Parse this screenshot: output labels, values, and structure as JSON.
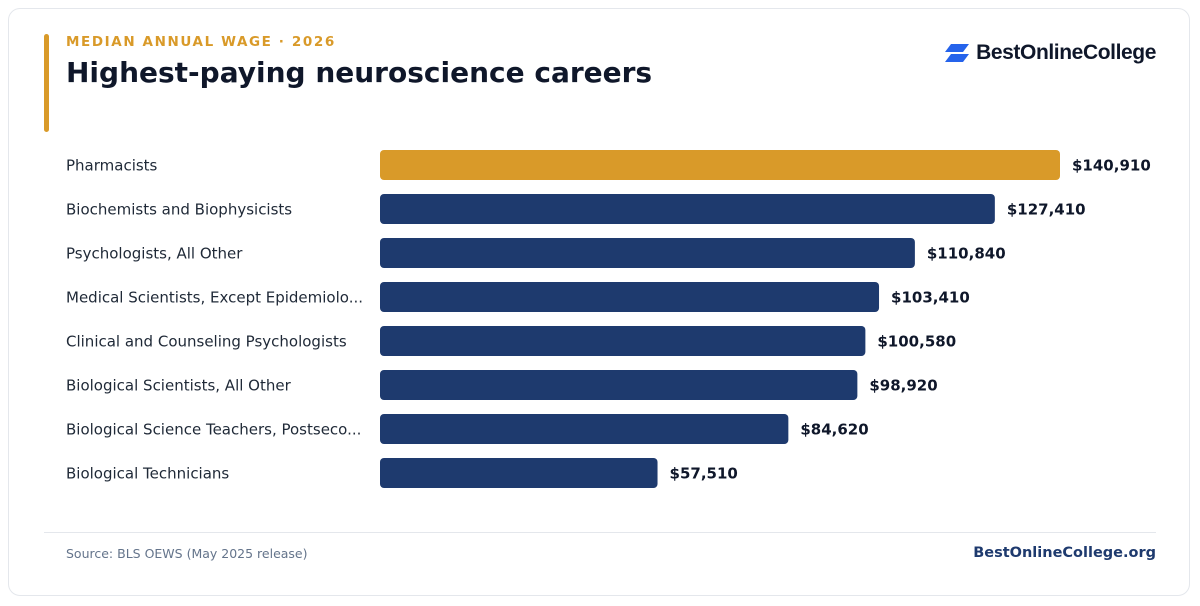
{
  "header": {
    "eyebrow": "MEDIAN ANNUAL WAGE · 2026",
    "title": "Highest-paying neuroscience careers"
  },
  "brand": {
    "name": "BestOnlineCollege",
    "icon": "double-parallelogram-logo-icon"
  },
  "colors": {
    "accent": "#d99a29",
    "bar": "#1e3a6e",
    "highlight": "#d99a29",
    "logo": "#2563eb"
  },
  "chart_data": {
    "type": "bar",
    "orientation": "horizontal",
    "title": "Highest-paying neuroscience careers",
    "xlabel": "",
    "ylabel": "",
    "grid": false,
    "legend": "none",
    "categories": [
      "Pharmacists",
      "Biochemists and Biophysicists",
      "Psychologists, All Other",
      "Medical Scientists, Except Epidemiolo...",
      "Clinical and Counseling Psychologists",
      "Biological Scientists, All Other",
      "Biological Science Teachers, Postseco...",
      "Biological Technicians"
    ],
    "values": [
      140910,
      127410,
      110840,
      103410,
      100580,
      98920,
      84620,
      57510
    ],
    "value_labels": [
      "$140,910",
      "$127,410",
      "$110,840",
      "$103,410",
      "$100,580",
      "$98,920",
      "$84,620",
      "$57,510"
    ],
    "highlight_index": 0,
    "xlim": [
      0,
      140910
    ]
  },
  "footer": {
    "source": "Source: BLS OEWS (May 2025 release)",
    "url": "BestOnlineCollege.org"
  }
}
